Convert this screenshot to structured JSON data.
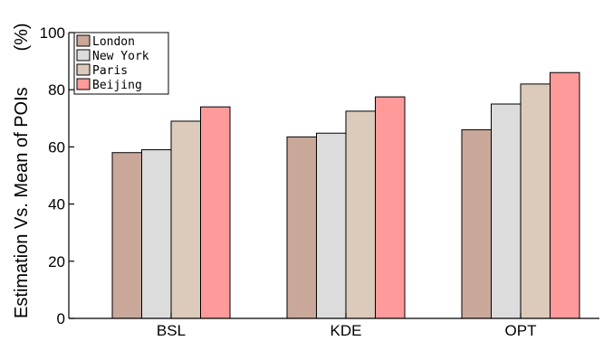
{
  "chart_data": {
    "type": "bar",
    "categories": [
      "BSL",
      "KDE",
      "OPT"
    ],
    "series": [
      {
        "name": "London",
        "values": [
          58,
          63.5,
          66
        ],
        "color": "#c9a89a"
      },
      {
        "name": "New York",
        "values": [
          59,
          64.8,
          75
        ],
        "color": "#dcdcdc"
      },
      {
        "name": "Paris",
        "values": [
          69,
          72.5,
          82
        ],
        "color": "#dccbbb"
      },
      {
        "name": "Beijing",
        "values": [
          74,
          77.5,
          86
        ],
        "color": "#ff9a9a"
      }
    ],
    "title": "",
    "xlabel": "",
    "ylabel": "Estimation Vs. Mean of POIs",
    "yunit": "(%)",
    "ylim": [
      0,
      100
    ],
    "yticks": [
      0,
      20,
      40,
      60,
      80,
      100
    ],
    "grid": false,
    "legend_position": "top-left"
  }
}
